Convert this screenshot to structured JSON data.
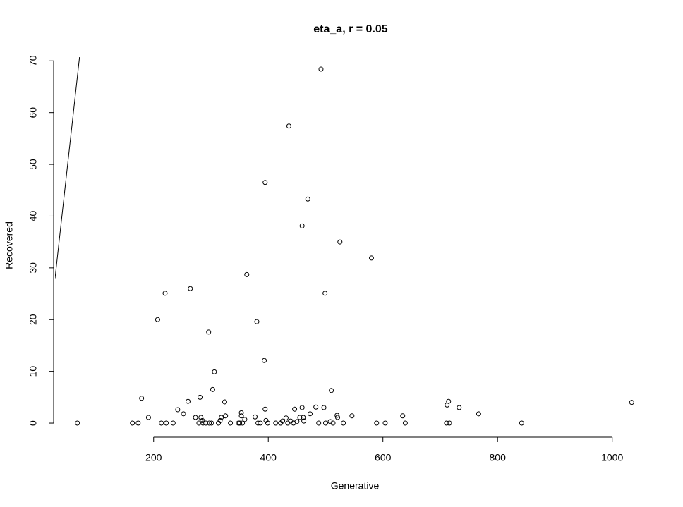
{
  "chart_data": {
    "type": "scatter",
    "title": "eta_a, r = 0.05",
    "x_label": "Generative",
    "y_label": "Recovered",
    "x": [
      67,
      163,
      173,
      179,
      191,
      207,
      213.5,
      220,
      222,
      234,
      242,
      252,
      260,
      264,
      273,
      279,
      281,
      282.5,
      285,
      286,
      291,
      296,
      297,
      301,
      303,
      306,
      313,
      316,
      318,
      324,
      325.5,
      334,
      348,
      350,
      353,
      353,
      355,
      359,
      362.5,
      377,
      380,
      382,
      386,
      393,
      394.5,
      394.5,
      396,
      399,
      413,
      421.5,
      425,
      431,
      434,
      436,
      439,
      444,
      446,
      450,
      455,
      459,
      459,
      461,
      462,
      469,
      473,
      483,
      488,
      492,
      497,
      499,
      500,
      508,
      510,
      513,
      520,
      521,
      525,
      531,
      546,
      580,
      589,
      604,
      634.5,
      639,
      711,
      712,
      714.5,
      716,
      733,
      767,
      842,
      1034
    ],
    "y": [
      0,
      0,
      0,
      4.8,
      1.1,
      20,
      0,
      25.1,
      0,
      0,
      2.6,
      1.8,
      4.2,
      26,
      1.1,
      0,
      5,
      1.1,
      0.5,
      0,
      0,
      17.6,
      0,
      0,
      6.5,
      9.9,
      0,
      0.5,
      1.1,
      4.1,
      1.4,
      0,
      0,
      0,
      2,
      1.4,
      0,
      0.7,
      28.7,
      1.2,
      19.6,
      0,
      0,
      12.1,
      46.5,
      2.7,
      0.5,
      0,
      0,
      0,
      0.4,
      1,
      0,
      57.4,
      0.4,
      0,
      2.7,
      0.3,
      1.1,
      38.1,
      3,
      1.1,
      0.4,
      43.3,
      1.8,
      3.1,
      0,
      68.4,
      3,
      25.1,
      0,
      0.3,
      6.3,
      0,
      1.5,
      1.1,
      35,
      0,
      1.4,
      31.9,
      0,
      0,
      1.4,
      0,
      0,
      3.5,
      4.2,
      0,
      3,
      1.8,
      0,
      4
    ],
    "color": "#000000",
    "identity_line": true,
    "xlim": [
      28,
      1073
    ],
    "ylim": [
      -2.72,
      70.72
    ],
    "xticks": [
      200,
      400,
      600,
      800,
      1000
    ],
    "yticks": [
      0,
      10,
      20,
      30,
      40,
      50,
      60,
      70
    ]
  }
}
